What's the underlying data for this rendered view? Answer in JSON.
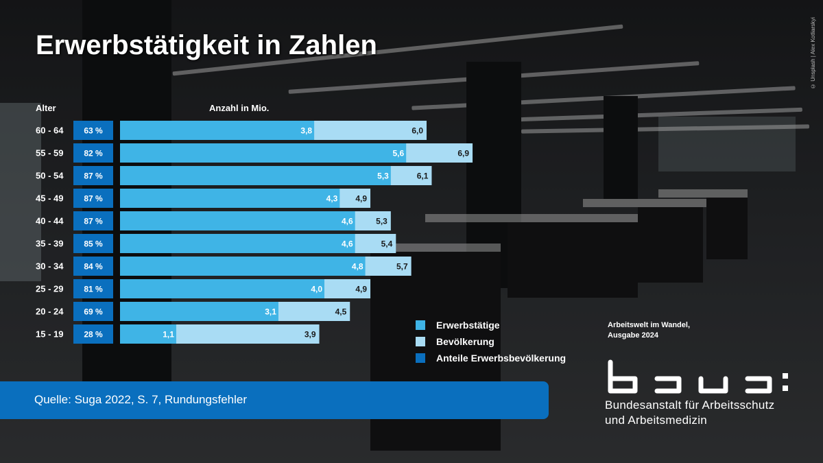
{
  "title": "Erwerbstätigkeit in Zahlen",
  "photo_credit": "© Unsplash | Alex Kotliarskyi",
  "age_header": "Alter",
  "count_header": "Anzahl in Mio.",
  "legend": [
    {
      "label": "Erwerbstätige",
      "color": "#3fb4e6"
    },
    {
      "label": "Bevölkerung",
      "color": "#a9dcf4"
    },
    {
      "label": "Anteile Erwerbsbevölkerung",
      "color": "#0a6fbe"
    }
  ],
  "edition": {
    "line1": "Arbeitswelt im Wandel,",
    "line2": "Ausgabe 2024"
  },
  "logo": {
    "wordmark": "baua:",
    "line1": "Bundesanstalt für Arbeitsschutz",
    "line2": "und Arbeitsmedizin"
  },
  "source": "Quelle: Suga 2022, S. 7, Rundungsfehler",
  "colors": {
    "employed": "#3fb4e6",
    "population": "#a9dcf4",
    "share": "#0a6fbe"
  },
  "chart_data": {
    "type": "bar",
    "orientation": "horizontal",
    "categories": [
      "60 - 64",
      "55 - 59",
      "50 - 54",
      "45 - 49",
      "40 - 44",
      "35 - 39",
      "30 - 34",
      "25 - 29",
      "20 - 24",
      "15 - 19"
    ],
    "series": [
      {
        "name": "Erwerbstätige",
        "values": [
          3.8,
          5.6,
          5.3,
          4.3,
          4.6,
          4.6,
          4.8,
          4.0,
          3.1,
          1.1
        ],
        "labels": [
          "3,8",
          "5,6",
          "5,3",
          "4,3",
          "4,6",
          "4,6",
          "4,8",
          "4,0",
          "3,1",
          "1,1"
        ]
      },
      {
        "name": "Bevölkerung",
        "values": [
          6.0,
          6.9,
          6.1,
          4.9,
          5.3,
          5.4,
          5.7,
          4.9,
          4.5,
          3.9
        ],
        "labels": [
          "6,0",
          "6,9",
          "6,1",
          "4,9",
          "5,3",
          "5,4",
          "5,7",
          "4,9",
          "4,5",
          "3,9"
        ]
      },
      {
        "name": "Anteile Erwerbsbevölkerung",
        "values": [
          63,
          82,
          87,
          87,
          87,
          85,
          84,
          81,
          69,
          28
        ],
        "labels": [
          "63 %",
          "82 %",
          "87 %",
          "87 %",
          "87 %",
          "85 %",
          "84 %",
          "81 %",
          "69 %",
          "28 %"
        ]
      }
    ],
    "xlabel": "Anzahl in Mio.",
    "ylabel": "Alter",
    "xlim": [
      0,
      7.0
    ]
  }
}
